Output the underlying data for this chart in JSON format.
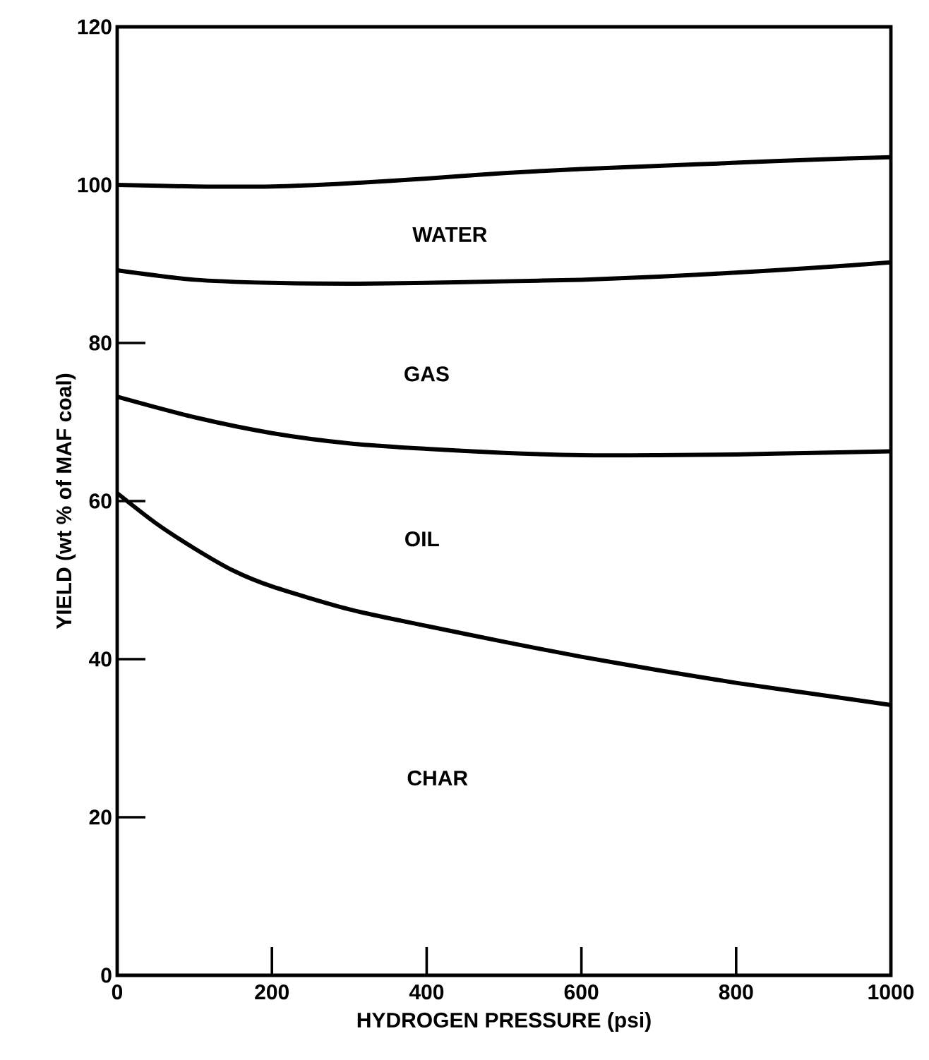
{
  "chart_data": {
    "type": "line",
    "xlabel": "HYDROGEN PRESSURE (psi)",
    "ylabel": "YIELD (wt % of MAF coal)",
    "xlim": [
      0,
      1000
    ],
    "ylim": [
      0,
      120
    ],
    "xticks": [
      0,
      200,
      400,
      600,
      800,
      1000
    ],
    "yticks": [
      0,
      20,
      40,
      60,
      80,
      100,
      120
    ],
    "marker": "none",
    "line_style": "solid",
    "series": [
      {
        "color": "#000000",
        "x": [
          0,
          100,
          200,
          300,
          400,
          500,
          600,
          700,
          800,
          900,
          1000
        ],
        "values": [
          100,
          99.8,
          99.8,
          100.2,
          100.8,
          101.5,
          102,
          102.4,
          102.8,
          103.2,
          103.5
        ]
      },
      {
        "color": "#000000",
        "x": [
          0,
          100,
          200,
          300,
          400,
          500,
          600,
          700,
          800,
          900,
          1000
        ],
        "values": [
          89.2,
          88,
          87.6,
          87.5,
          87.6,
          87.8,
          88,
          88.4,
          88.9,
          89.5,
          90.2
        ]
      },
      {
        "color": "#000000",
        "x": [
          0,
          100,
          200,
          300,
          400,
          500,
          600,
          700,
          800,
          900,
          1000
        ],
        "values": [
          73.2,
          70.6,
          68.6,
          67.3,
          66.6,
          66.1,
          65.8,
          65.8,
          65.9,
          66.1,
          66.3
        ]
      },
      {
        "color": "#000000",
        "x": [
          0,
          50,
          100,
          150,
          200,
          300,
          400,
          500,
          600,
          700,
          800,
          900,
          1000
        ],
        "values": [
          61,
          57.2,
          54,
          51.2,
          49.2,
          46.3,
          44.2,
          42.2,
          40.3,
          38.6,
          37,
          35.6,
          34.2
        ]
      }
    ],
    "annotations": [
      "WATER",
      "GAS",
      "OIL",
      "CHAR"
    ]
  }
}
